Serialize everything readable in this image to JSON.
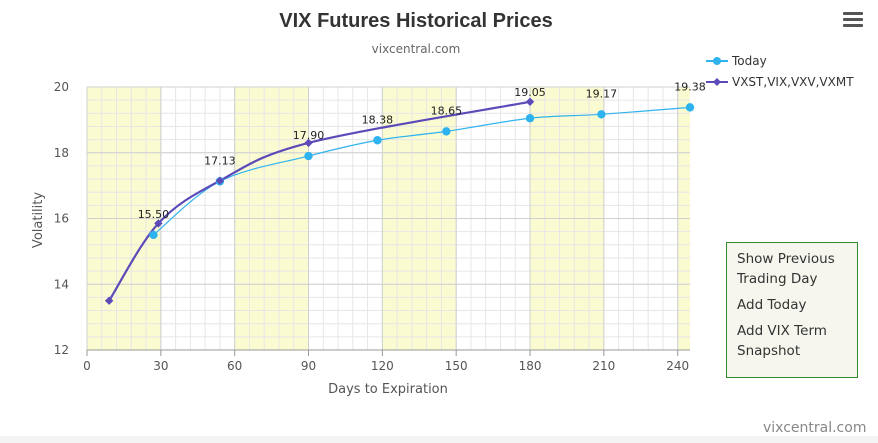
{
  "chart_data": {
    "type": "line",
    "title": "VIX Futures Historical Prices",
    "subtitle": "vixcentral.com",
    "xlabel": "Days to Expiration",
    "ylabel": "Volatility",
    "xlim": [
      0,
      245
    ],
    "ylim": [
      12,
      20
    ],
    "x_ticks": [
      0,
      30,
      60,
      90,
      120,
      150,
      180,
      210,
      240
    ],
    "y_ticks": [
      12,
      14,
      16,
      18,
      20
    ],
    "legend_position": "top-right",
    "series": [
      {
        "name": "Today",
        "color": "#2fb3ee",
        "marker": "circle",
        "x": [
          27,
          54,
          90,
          118,
          146,
          180,
          209,
          245
        ],
        "y": [
          15.5,
          17.13,
          17.9,
          18.38,
          18.65,
          19.05,
          19.17,
          19.38
        ],
        "labels": [
          "15.50",
          "17.13",
          "17.90",
          "18.38",
          "18.65",
          "19.05",
          "19.17",
          "19.38"
        ]
      },
      {
        "name": "VXST,VIX,VXV,VXMT",
        "color": "#5b4ab8",
        "marker": "diamond",
        "x": [
          9,
          29,
          54,
          90,
          180
        ],
        "y": [
          13.5,
          15.85,
          17.15,
          18.3,
          19.55
        ],
        "labels": []
      }
    ]
  },
  "menu": {
    "items": [
      "Show Previous Trading Day",
      "Add Today",
      "Add VIX Term Snapshot"
    ]
  },
  "watermark": "vixcentral.com"
}
